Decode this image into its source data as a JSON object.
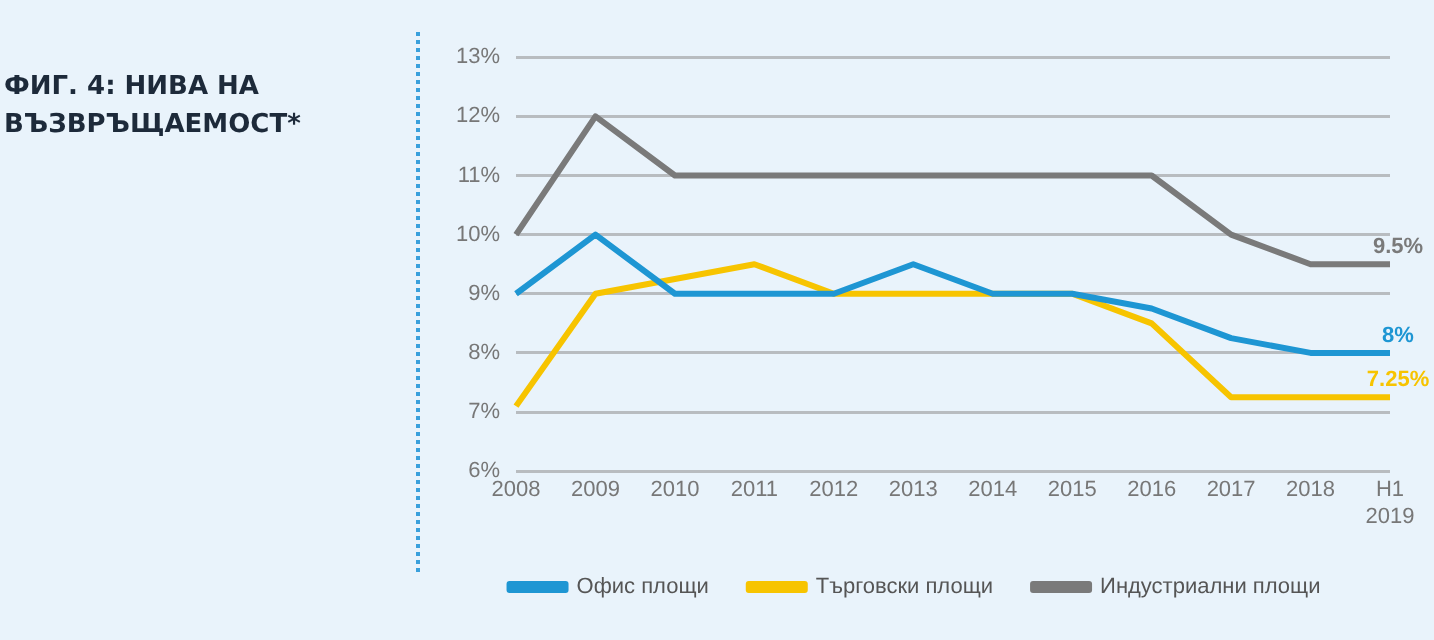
{
  "chart_data": {
    "type": "line",
    "title": "ФИГ. 4: НИВА НА ВЪЗВРЪЩАЕМОСТ*",
    "categories": [
      "2008",
      "2009",
      "2010",
      "2011",
      "2012",
      "2013",
      "2014",
      "2015",
      "2016",
      "2017",
      "2018",
      "H1 2019"
    ],
    "series": [
      {
        "name": "Офис площи",
        "color": "#1e96d3",
        "values": [
          9,
          10,
          9,
          9,
          9,
          9.5,
          9,
          9,
          8.75,
          8.25,
          8,
          8
        ],
        "value_labels": [
          null,
          null,
          null,
          null,
          null,
          null,
          null,
          null,
          null,
          null,
          null,
          "8%"
        ]
      },
      {
        "name": "Търговски площи",
        "color": "#f7c400",
        "values": [
          7.1,
          9,
          9.25,
          9.5,
          9,
          9,
          9,
          9,
          8.5,
          7.25,
          7.25,
          7.25
        ],
        "value_labels": [
          null,
          null,
          null,
          null,
          null,
          null,
          null,
          null,
          null,
          null,
          null,
          "7.25%"
        ]
      },
      {
        "name": "Индустриални площи",
        "color": "#7a7a7a",
        "values": [
          10,
          12,
          11,
          11,
          11,
          11,
          11,
          11,
          11,
          10,
          9.5,
          9.5
        ],
        "value_labels": [
          null,
          null,
          null,
          null,
          null,
          null,
          null,
          null,
          null,
          null,
          null,
          "9.5%"
        ]
      }
    ],
    "ylim": [
      6,
      13
    ],
    "yticks": [
      {
        "value": 6,
        "label": "6%"
      },
      {
        "value": 7,
        "label": "7%"
      },
      {
        "value": 8,
        "label": "8%"
      },
      {
        "value": 9,
        "label": "9%"
      },
      {
        "value": 10,
        "label": "10%"
      },
      {
        "value": 11,
        "label": "11%"
      },
      {
        "value": 12,
        "label": "12%"
      },
      {
        "value": 13,
        "label": "13%"
      }
    ],
    "grid": "y",
    "legend": "bottom",
    "marker": "none",
    "line_style": "solid"
  }
}
